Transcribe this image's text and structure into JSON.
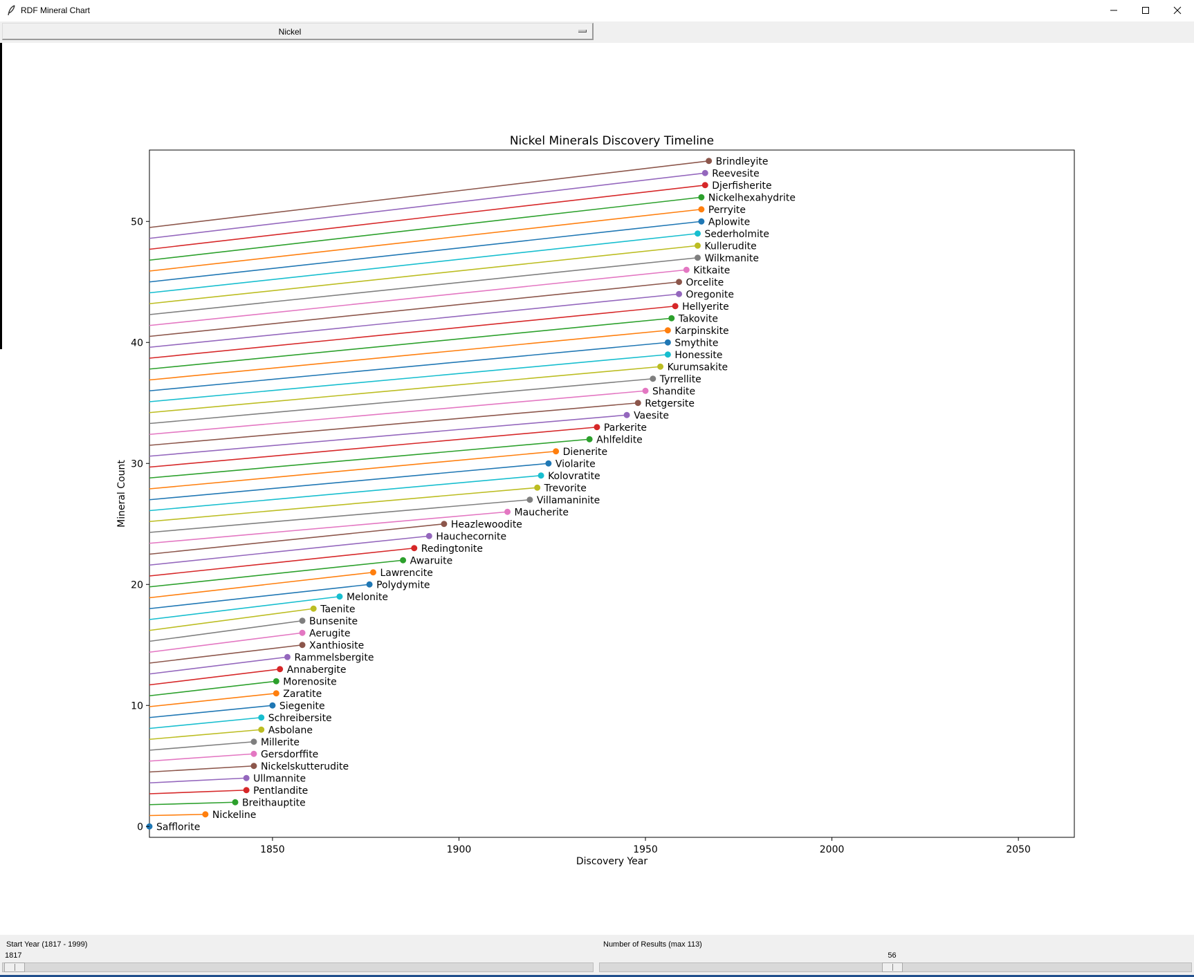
{
  "window": {
    "title": "RDF Mineral Chart"
  },
  "toolbar": {
    "element_select": "Nickel"
  },
  "controls": {
    "start_year_label": "Start Year (1817 - 1999)",
    "start_year_value": "1817",
    "start_year_fraction": 0.0,
    "results_label": "Number of Results (max 113)",
    "results_value": "56",
    "results_fraction": 0.495
  },
  "chart_data": {
    "type": "line",
    "title": "Nickel Minerals Discovery Timeline",
    "xlabel": "Discovery Year",
    "ylabel": "Mineral Count",
    "xlim": [
      1817,
      2065
    ],
    "ylim": [
      -0.9,
      55.9
    ],
    "xticks": [
      1850,
      1900,
      1950,
      2000,
      2050
    ],
    "yticks": [
      0,
      10,
      20,
      30,
      40,
      50
    ],
    "line_start_x": 1817,
    "colors": [
      "#1f77b4",
      "#ff7f0e",
      "#2ca02c",
      "#d62728",
      "#9467bd",
      "#8c564b",
      "#e377c2",
      "#7f7f7f",
      "#bcbd22",
      "#17becf"
    ],
    "minerals": [
      {
        "name": "Safflorite",
        "year": 1817,
        "count": 0
      },
      {
        "name": "Nickeline",
        "year": 1832,
        "count": 1
      },
      {
        "name": "Breithauptite",
        "year": 1840,
        "count": 2
      },
      {
        "name": "Pentlandite",
        "year": 1843,
        "count": 3
      },
      {
        "name": "Ullmannite",
        "year": 1843,
        "count": 4
      },
      {
        "name": "Nickelskutterudite",
        "year": 1845,
        "count": 5
      },
      {
        "name": "Gersdorffite",
        "year": 1845,
        "count": 6
      },
      {
        "name": "Millerite",
        "year": 1845,
        "count": 7
      },
      {
        "name": "Asbolane",
        "year": 1847,
        "count": 8
      },
      {
        "name": "Schreibersite",
        "year": 1847,
        "count": 9
      },
      {
        "name": "Siegenite",
        "year": 1850,
        "count": 10
      },
      {
        "name": "Zaratite",
        "year": 1851,
        "count": 11
      },
      {
        "name": "Morenosite",
        "year": 1851,
        "count": 12
      },
      {
        "name": "Annabergite",
        "year": 1852,
        "count": 13
      },
      {
        "name": "Rammelsbergite",
        "year": 1854,
        "count": 14
      },
      {
        "name": "Xanthiosite",
        "year": 1858,
        "count": 15
      },
      {
        "name": "Aerugite",
        "year": 1858,
        "count": 16
      },
      {
        "name": "Bunsenite",
        "year": 1858,
        "count": 17
      },
      {
        "name": "Taenite",
        "year": 1861,
        "count": 18
      },
      {
        "name": "Melonite",
        "year": 1868,
        "count": 19
      },
      {
        "name": "Polydymite",
        "year": 1876,
        "count": 20
      },
      {
        "name": "Lawrencite",
        "year": 1877,
        "count": 21
      },
      {
        "name": "Awaruite",
        "year": 1885,
        "count": 22
      },
      {
        "name": "Redingtonite",
        "year": 1888,
        "count": 23
      },
      {
        "name": "Hauchecornite",
        "year": 1892,
        "count": 24
      },
      {
        "name": "Heazlewoodite",
        "year": 1896,
        "count": 25
      },
      {
        "name": "Maucherite",
        "year": 1913,
        "count": 26
      },
      {
        "name": "Villamaninite",
        "year": 1919,
        "count": 27
      },
      {
        "name": "Trevorite",
        "year": 1921,
        "count": 28
      },
      {
        "name": "Kolovratite",
        "year": 1922,
        "count": 29
      },
      {
        "name": "Violarite",
        "year": 1924,
        "count": 30
      },
      {
        "name": "Dienerite",
        "year": 1926,
        "count": 31
      },
      {
        "name": "Ahlfeldite",
        "year": 1935,
        "count": 32
      },
      {
        "name": "Parkerite",
        "year": 1937,
        "count": 33
      },
      {
        "name": "Vaesite",
        "year": 1945,
        "count": 34
      },
      {
        "name": "Retgersite",
        "year": 1948,
        "count": 35
      },
      {
        "name": "Shandite",
        "year": 1950,
        "count": 36
      },
      {
        "name": "Tyrrellite",
        "year": 1952,
        "count": 37
      },
      {
        "name": "Kurumsakite",
        "year": 1954,
        "count": 38
      },
      {
        "name": "Honessite",
        "year": 1956,
        "count": 39
      },
      {
        "name": "Smythite",
        "year": 1956,
        "count": 40
      },
      {
        "name": "Karpinskite",
        "year": 1956,
        "count": 41
      },
      {
        "name": "Takovite",
        "year": 1957,
        "count": 42
      },
      {
        "name": "Hellyerite",
        "year": 1958,
        "count": 43
      },
      {
        "name": "Oregonite",
        "year": 1959,
        "count": 44
      },
      {
        "name": "Orcelite",
        "year": 1959,
        "count": 45
      },
      {
        "name": "Kitkaite",
        "year": 1961,
        "count": 46
      },
      {
        "name": "Wilkmanite",
        "year": 1964,
        "count": 47
      },
      {
        "name": "Kullerudite",
        "year": 1964,
        "count": 48
      },
      {
        "name": "Sederholmite",
        "year": 1964,
        "count": 49
      },
      {
        "name": "Aplowite",
        "year": 1965,
        "count": 50
      },
      {
        "name": "Perryite",
        "year": 1965,
        "count": 51
      },
      {
        "name": "Nickelhexahydrite",
        "year": 1965,
        "count": 52
      },
      {
        "name": "Djerfisherite",
        "year": 1966,
        "count": 53
      },
      {
        "name": "Reevesite",
        "year": 1966,
        "count": 54
      },
      {
        "name": "Brindleyite",
        "year": 1967,
        "count": 55
      }
    ]
  }
}
